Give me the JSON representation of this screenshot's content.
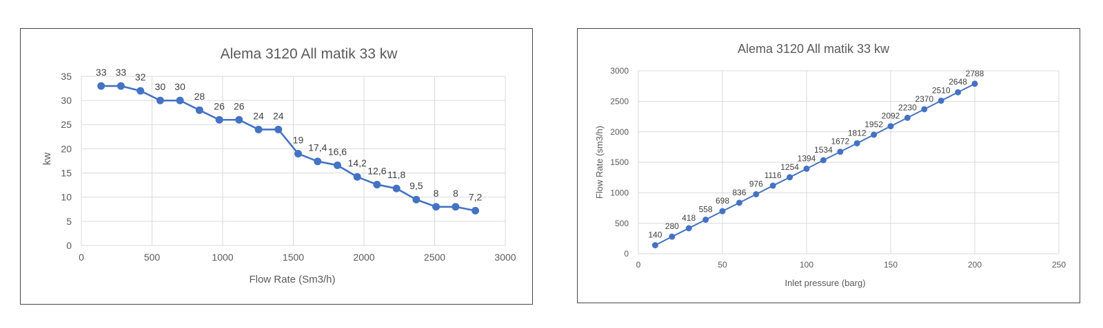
{
  "chart_data": [
    {
      "type": "line",
      "title": "Alema 3120 All matik 33 kw",
      "xlabel": "Flow Rate (Sm3/h)",
      "ylabel": "kw",
      "xlim": [
        0,
        3000
      ],
      "ylim": [
        0,
        35
      ],
      "x_ticks": [
        0,
        500,
        1000,
        1500,
        2000,
        2500,
        3000
      ],
      "y_ticks": [
        0,
        5,
        10,
        15,
        20,
        25,
        30,
        35
      ],
      "x_tick_labels": [
        "0",
        "500",
        "1000",
        "1500",
        "2000",
        "2500",
        "3000"
      ],
      "y_tick_labels": [
        "0",
        "5",
        "10",
        "15",
        "20",
        "25",
        "30",
        "35"
      ],
      "grid": true,
      "color": "#4472c4",
      "series": [
        {
          "x": [
            140,
            280,
            418,
            558,
            698,
            836,
            976,
            1116,
            1254,
            1394,
            1534,
            1672,
            1812,
            1952,
            2092,
            2230,
            2370,
            2510,
            2648,
            2788
          ],
          "y": [
            33,
            33,
            32,
            30,
            30,
            28,
            26,
            26,
            24,
            24,
            19,
            17.4,
            16.6,
            14.2,
            12.6,
            11.8,
            9.5,
            8,
            8,
            7.2
          ],
          "labels": [
            "33",
            "33",
            "32",
            "30",
            "30",
            "28",
            "26",
            "26",
            "24",
            "24",
            "19",
            "17,4",
            "16,6",
            "14,2",
            "12,6",
            "11,8",
            "9,5",
            "8",
            "8",
            "7,2"
          ]
        }
      ]
    },
    {
      "type": "line",
      "title": "Alema 3120 All matik 33 kw",
      "xlabel": "Inlet pressure (barg)",
      "ylabel": "Flow Rate (sm3/h)",
      "xlim": [
        0,
        250
      ],
      "ylim": [
        0,
        3000
      ],
      "x_ticks": [
        0,
        50,
        100,
        150,
        200,
        250
      ],
      "y_ticks": [
        0,
        500,
        1000,
        1500,
        2000,
        2500,
        3000
      ],
      "x_tick_labels": [
        "0",
        "50",
        "100",
        "150",
        "200",
        "250"
      ],
      "y_tick_labels": [
        "0",
        "500",
        "1000",
        "1500",
        "2000",
        "2500",
        "3000"
      ],
      "grid": true,
      "color": "#4472c4",
      "series": [
        {
          "x": [
            10,
            20,
            30,
            40,
            50,
            60,
            70,
            80,
            90,
            100,
            110,
            120,
            130,
            140,
            150,
            160,
            170,
            180,
            190,
            200
          ],
          "y": [
            140,
            280,
            418,
            558,
            698,
            836,
            976,
            1116,
            1254,
            1394,
            1534,
            1672,
            1812,
            1952,
            2092,
            2230,
            2370,
            2510,
            2648,
            2788
          ],
          "labels": [
            "140",
            "280",
            "418",
            "558",
            "698",
            "836",
            "976",
            "1116",
            "1254",
            "1394",
            "1534",
            "1672",
            "1812",
            "1952",
            "2092",
            "2230",
            "2370",
            "2510",
            "2648",
            "2788"
          ]
        }
      ]
    }
  ]
}
